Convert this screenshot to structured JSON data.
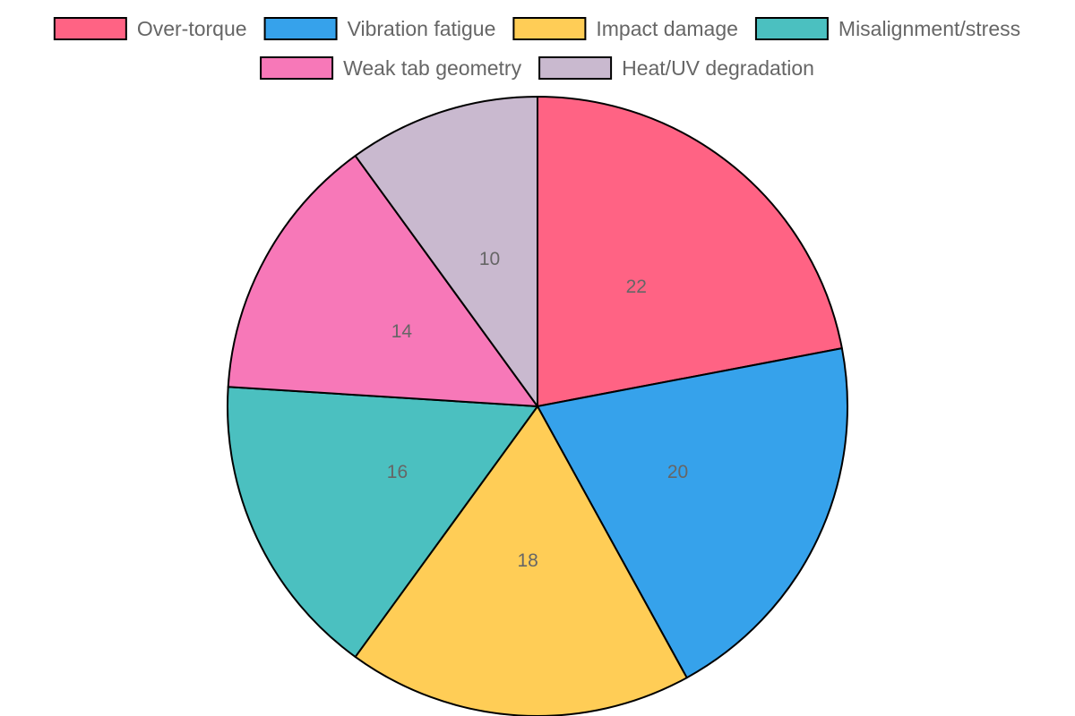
{
  "chart_data": {
    "type": "pie",
    "title": "",
    "legend_position": "top",
    "slices": [
      {
        "label": "Over-torque",
        "value": 22,
        "color": "#ff6384"
      },
      {
        "label": "Vibration fatigue",
        "value": 20,
        "color": "#36a2eb"
      },
      {
        "label": "Impact damage",
        "value": 18,
        "color": "#ffcd56"
      },
      {
        "label": "Misalignment/stress",
        "value": 16,
        "color": "#4bc0c0"
      },
      {
        "label": "Weak tab geometry",
        "value": 14,
        "color": "#f778b8"
      },
      {
        "label": "Heat/UV degradation",
        "value": 10,
        "color": "#c9b9cf"
      }
    ],
    "border_color": "#000000"
  }
}
